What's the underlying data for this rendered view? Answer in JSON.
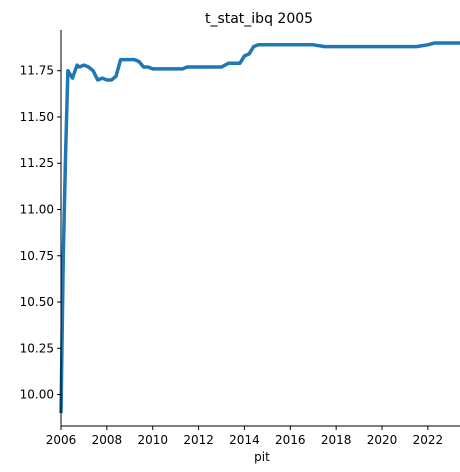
{
  "chart_data": {
    "type": "line",
    "title": "t_stat_ibq 2005",
    "xlabel": "pit",
    "ylabel": "",
    "xlim": [
      2006.0,
      2023.4
    ],
    "ylim": [
      9.83,
      11.97
    ],
    "grid": false,
    "legend": "none",
    "x_ticks": [
      2006,
      2008,
      2010,
      2012,
      2014,
      2016,
      2018,
      2020,
      2022
    ],
    "y_ticks": [
      10.0,
      10.25,
      10.5,
      10.75,
      11.0,
      11.25,
      11.5,
      11.75
    ],
    "y_tick_labels": [
      "10.00",
      "10.25",
      "10.50",
      "10.75",
      "11.00",
      "11.25",
      "11.50",
      "11.75"
    ],
    "series": [
      {
        "name": "",
        "color": "#1f77b4",
        "x": [
          2006.0,
          2006.1,
          2006.2,
          2006.3,
          2006.5,
          2006.7,
          2006.8,
          2007.0,
          2007.2,
          2007.4,
          2007.6,
          2007.8,
          2008.0,
          2008.2,
          2008.4,
          2008.6,
          2008.8,
          2009.0,
          2009.2,
          2009.4,
          2009.6,
          2009.8,
          2010.0,
          2010.2,
          2010.5,
          2010.8,
          2011.0,
          2011.3,
          2011.5,
          2012.0,
          2012.5,
          2013.0,
          2013.3,
          2013.6,
          2013.8,
          2014.0,
          2014.2,
          2014.4,
          2014.6,
          2015.0,
          2016.0,
          2017.0,
          2017.5,
          2018.0,
          2019.0,
          2020.0,
          2020.8,
          2021.5,
          2022.0,
          2022.3,
          2022.8,
          2023.4
        ],
        "values": [
          9.9,
          10.75,
          11.3,
          11.75,
          11.71,
          11.78,
          11.77,
          11.78,
          11.77,
          11.75,
          11.7,
          11.71,
          11.7,
          11.7,
          11.72,
          11.81,
          11.81,
          11.81,
          11.81,
          11.8,
          11.77,
          11.77,
          11.76,
          11.76,
          11.76,
          11.76,
          11.76,
          11.76,
          11.77,
          11.77,
          11.77,
          11.77,
          11.79,
          11.79,
          11.79,
          11.83,
          11.84,
          11.88,
          11.89,
          11.89,
          11.89,
          11.89,
          11.88,
          11.88,
          11.88,
          11.88,
          11.88,
          11.88,
          11.89,
          11.9,
          11.9,
          11.9
        ]
      }
    ]
  }
}
